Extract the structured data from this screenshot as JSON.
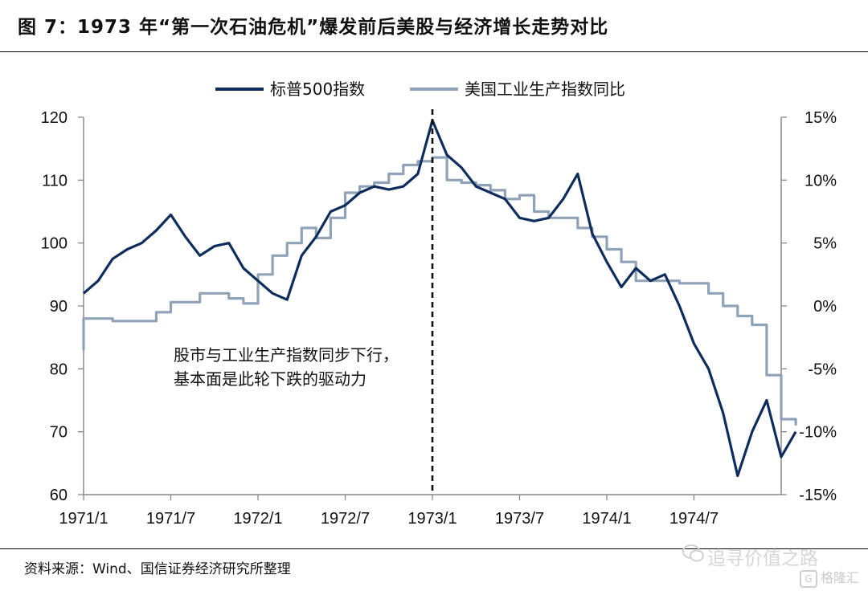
{
  "title": "图 7：1973 年“第一次石油危机”爆发前后美股与经济增长走势对比",
  "source": "资料来源：Wind、国信证券经济研究所整理",
  "watermark": "追寻价值之路",
  "logo_text": "格隆汇",
  "colors": {
    "sp500": "#0f2d5c",
    "ip": "#8fa2b8",
    "axis": "#888888"
  },
  "chart_data": {
    "type": "line",
    "title": "",
    "legend_position": "top-center",
    "grid": false,
    "x_tick_labels": [
      "1971/1",
      "1971/7",
      "1972/1",
      "1972/7",
      "1973/1",
      "1973/7",
      "1974/1",
      "1974/7"
    ],
    "x_tick_dates": [
      "1971-01",
      "1971-07",
      "1972-01",
      "1972-07",
      "1973-01",
      "1973-07",
      "1974-01",
      "1974-07"
    ],
    "xlim": [
      "1971-01",
      "1974-12"
    ],
    "y_left": {
      "ticks": [
        60,
        70,
        80,
        90,
        100,
        110,
        120
      ],
      "lim": [
        60,
        120
      ]
    },
    "y_right": {
      "ticks": [
        -15,
        -10,
        -5,
        0,
        5,
        10,
        15
      ],
      "tick_labels": [
        "-15%",
        "-10%",
        "-5%",
        "0%",
        "5%",
        "10%",
        "15%"
      ],
      "lim": [
        -15,
        15
      ],
      "unit": "%"
    },
    "annotation": {
      "lines": [
        "股市与工业生产指数同步下行，",
        "基本面是此轮下跌的驱动力"
      ]
    },
    "vline": {
      "x": "1973-01",
      "style": "dashed"
    },
    "series": [
      {
        "name": "标普500指数",
        "axis": "left",
        "points": [
          [
            "1971-01",
            92
          ],
          [
            "1971-02",
            94
          ],
          [
            "1971-03",
            97.5
          ],
          [
            "1971-04",
            99
          ],
          [
            "1971-05",
            100
          ],
          [
            "1971-06",
            102
          ],
          [
            "1971-07",
            104.5
          ],
          [
            "1971-08",
            101
          ],
          [
            "1971-09",
            98
          ],
          [
            "1971-10",
            99.5
          ],
          [
            "1971-11",
            100
          ],
          [
            "1971-12",
            96
          ],
          [
            "1972-01",
            94
          ],
          [
            "1972-02",
            92
          ],
          [
            "1972-03",
            91
          ],
          [
            "1972-04",
            98
          ],
          [
            "1972-05",
            101
          ],
          [
            "1972-06",
            105
          ],
          [
            "1972-07",
            106
          ],
          [
            "1972-08",
            108
          ],
          [
            "1972-09",
            109
          ],
          [
            "1972-10",
            108.5
          ],
          [
            "1972-11",
            109
          ],
          [
            "1972-12",
            111
          ],
          [
            "1973-01",
            119.5
          ],
          [
            "1973-02",
            114
          ],
          [
            "1973-03",
            112
          ],
          [
            "1973-04",
            109
          ],
          [
            "1973-05",
            108
          ],
          [
            "1973-06",
            107
          ],
          [
            "1973-07",
            104
          ],
          [
            "1973-08",
            103.5
          ],
          [
            "1973-09",
            104
          ],
          [
            "1973-10",
            107
          ],
          [
            "1973-11",
            111
          ],
          [
            "1973-12",
            101.5
          ],
          [
            "1974-01",
            97
          ],
          [
            "1974-02",
            93
          ],
          [
            "1974-03",
            96
          ],
          [
            "1974-04",
            94
          ],
          [
            "1974-05",
            95
          ],
          [
            "1974-06",
            90
          ],
          [
            "1974-07",
            84
          ],
          [
            "1974-08",
            80
          ],
          [
            "1974-09",
            73
          ],
          [
            "1974-10",
            63
          ],
          [
            "1974-11",
            70
          ],
          [
            "1974-12",
            75
          ],
          [
            "1975-01",
            66
          ],
          [
            "1975-02",
            70
          ]
        ]
      },
      {
        "name": "美国工业生产指数同比",
        "axis": "right",
        "points": [
          [
            "1971-01",
            -3.5
          ],
          [
            "1971-01",
            -1
          ],
          [
            "1971-02",
            -1
          ],
          [
            "1971-03",
            -1.2
          ],
          [
            "1971-04",
            -1.2
          ],
          [
            "1971-05",
            -1.2
          ],
          [
            "1971-06",
            -0.5
          ],
          [
            "1971-07",
            0.3
          ],
          [
            "1971-08",
            0.3
          ],
          [
            "1971-09",
            1
          ],
          [
            "1971-10",
            1
          ],
          [
            "1971-11",
            0.6
          ],
          [
            "1971-12",
            0.2
          ],
          [
            "1972-01",
            2.5
          ],
          [
            "1972-02",
            4
          ],
          [
            "1972-03",
            5
          ],
          [
            "1972-04",
            6.2
          ],
          [
            "1972-05",
            5.4
          ],
          [
            "1972-06",
            7
          ],
          [
            "1972-07",
            9
          ],
          [
            "1972-08",
            9.5
          ],
          [
            "1972-09",
            9.8
          ],
          [
            "1972-10",
            10.5
          ],
          [
            "1972-11",
            11.2
          ],
          [
            "1972-12",
            11.5
          ],
          [
            "1973-01",
            11.8
          ],
          [
            "1973-02",
            10
          ],
          [
            "1973-03",
            9.8
          ],
          [
            "1973-04",
            9.6
          ],
          [
            "1973-05",
            9.2
          ],
          [
            "1973-06",
            8.5
          ],
          [
            "1973-07",
            8.8
          ],
          [
            "1973-08",
            7.5
          ],
          [
            "1973-09",
            7
          ],
          [
            "1973-10",
            7
          ],
          [
            "1973-11",
            6.2
          ],
          [
            "1973-12",
            5.5
          ],
          [
            "1974-01",
            4.5
          ],
          [
            "1974-02",
            3.5
          ],
          [
            "1974-03",
            2
          ],
          [
            "1974-04",
            2
          ],
          [
            "1974-05",
            2
          ],
          [
            "1974-06",
            1.8
          ],
          [
            "1974-07",
            1.8
          ],
          [
            "1974-08",
            1
          ],
          [
            "1974-09",
            0
          ],
          [
            "1974-10",
            -0.8
          ],
          [
            "1974-11",
            -1.5
          ],
          [
            "1974-12",
            -5.5
          ],
          [
            "1975-01",
            -9
          ],
          [
            "1975-02",
            -9.5
          ]
        ]
      }
    ]
  }
}
